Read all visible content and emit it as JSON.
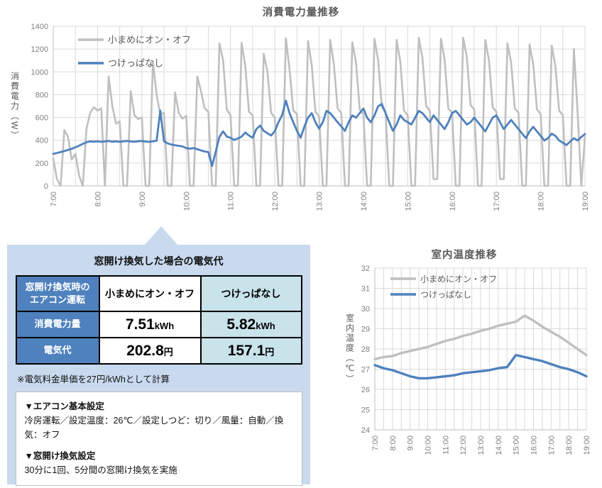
{
  "chart_data": [
    {
      "type": "line",
      "title": "消費電力量推移",
      "ylabel": "消費電力（W）",
      "ylim": [
        0,
        1400
      ],
      "ytick_step": 200,
      "x_labels": [
        "7:00",
        "8:00",
        "9:00",
        "10:00",
        "11:00",
        "12:00",
        "13:00",
        "14:00",
        "15:00",
        "16:00",
        "17:00",
        "18:00",
        "19:00"
      ],
      "total_minutes": 720,
      "grid_minutes": 30,
      "sample_interval_min": 5,
      "grid": "on",
      "legend_position": "inside-top-left",
      "series": [
        {
          "name": "小まめにオン・オフ",
          "color": "#BFBFBF",
          "values": [
            240,
            60,
            0,
            490,
            430,
            230,
            280,
            90,
            0,
            500,
            640,
            690,
            660,
            680,
            0,
            960,
            700,
            545,
            565,
            0,
            0,
            830,
            620,
            585,
            600,
            0,
            0,
            1090,
            800,
            625,
            640,
            0,
            0,
            820,
            640,
            590,
            615,
            0,
            0,
            960,
            830,
            680,
            650,
            0,
            0,
            1250,
            1100,
            670,
            620,
            0,
            0,
            1255,
            1050,
            650,
            620,
            0,
            0,
            1160,
            1000,
            640,
            600,
            0,
            0,
            1295,
            1020,
            660,
            630,
            0,
            0,
            1270,
            1060,
            650,
            610,
            0,
            0,
            1280,
            1070,
            680,
            640,
            0,
            0,
            1260,
            1080,
            670,
            630,
            0,
            0,
            1290,
            1100,
            690,
            650,
            0,
            0,
            1280,
            1090,
            660,
            620,
            0,
            0,
            1300,
            1120,
            700,
            660,
            60,
            60,
            1290,
            1110,
            680,
            640,
            0,
            0,
            1300,
            1130,
            710,
            670,
            0,
            0,
            1280,
            1100,
            690,
            650,
            60,
            60,
            1250,
            1080,
            680,
            640,
            0,
            0,
            1240,
            1060,
            670,
            630,
            0,
            0,
            1230,
            1050,
            660,
            620,
            0,
            0,
            1200,
            650,
            0,
            430
          ]
        },
        {
          "name": "つけっぱなし",
          "color": "#4E81BD",
          "values": [
            280,
            288,
            296,
            305,
            315,
            325,
            338,
            352,
            368,
            382,
            390,
            387,
            391,
            386,
            390,
            393,
            387,
            391,
            386,
            391,
            393,
            389,
            387,
            391,
            393,
            388,
            386,
            391,
            396,
            660,
            392,
            372,
            362,
            356,
            351,
            346,
            331,
            326,
            331,
            321,
            311,
            301,
            296,
            175,
            300,
            430,
            478,
            432,
            421,
            402,
            416,
            432,
            468,
            441,
            422,
            498,
            528,
            482,
            462,
            441,
            481,
            558,
            622,
            748,
            638,
            558,
            482,
            422,
            518,
            598,
            638,
            558,
            502,
            558,
            658,
            638,
            598,
            558,
            522,
            482,
            558,
            618,
            598,
            638,
            678,
            598,
            558,
            618,
            698,
            718,
            638,
            558,
            482,
            538,
            618,
            578,
            558,
            538,
            598,
            658,
            638,
            598,
            558,
            618,
            578,
            538,
            498,
            558,
            638,
            658,
            618,
            578,
            538,
            558,
            598,
            558,
            518,
            478,
            538,
            598,
            618,
            558,
            498,
            538,
            578,
            538,
            498,
            458,
            418,
            478,
            518,
            478,
            438,
            398,
            418,
            458,
            438,
            398,
            378,
            358,
            388,
            418,
            398,
            428,
            455
          ]
        }
      ]
    },
    {
      "type": "line",
      "title": "室内温度推移",
      "ylabel": "室内温度（℃）",
      "ylim": [
        24,
        32
      ],
      "ytick_step": 1,
      "x_labels": [
        "7:00",
        "8:00",
        "9:00",
        "10:00",
        "11:00",
        "12:00",
        "13:00",
        "14:00",
        "15:00",
        "16:00",
        "17:00",
        "18:00",
        "19:00"
      ],
      "total_minutes": 720,
      "grid_minutes": 30,
      "sample_interval_min": 30,
      "grid": "on",
      "legend_position": "inside-top-left",
      "series": [
        {
          "name": "小まめにオン・オフ",
          "color": "#BFBFBF",
          "values": [
            27.5,
            27.6,
            27.65,
            27.8,
            27.9,
            28.0,
            28.1,
            28.25,
            28.4,
            28.5,
            28.65,
            28.75,
            28.9,
            29.0,
            29.15,
            29.25,
            29.35,
            29.65,
            29.4,
            29.1,
            28.85,
            28.6,
            28.3,
            28.0,
            27.7
          ]
        },
        {
          "name": "つけっぱなし",
          "color": "#4E81BD",
          "values": [
            27.2,
            27.05,
            26.95,
            26.8,
            26.65,
            26.55,
            26.55,
            26.6,
            26.65,
            26.7,
            26.8,
            26.85,
            26.9,
            26.95,
            27.05,
            27.1,
            27.7,
            27.6,
            27.5,
            27.4,
            27.25,
            27.1,
            27.0,
            26.85,
            26.65
          ]
        }
      ]
    }
  ],
  "cost_panel": {
    "title": "窓開け換気した場合の電気代",
    "table": {
      "corner_line1": "窓開け換気時の",
      "corner_line2": "エアコン運転",
      "columns": [
        "小まめにオン・オフ",
        "つけっぱなし"
      ],
      "rows": [
        {
          "label": "消費電力量",
          "values": [
            {
              "amount": "7.51",
              "unit": "kWh"
            },
            {
              "amount": "5.82",
              "unit": "kWh"
            }
          ]
        },
        {
          "label": "電気代",
          "values": [
            {
              "amount": "202.8",
              "unit": "円"
            },
            {
              "amount": "157.1",
              "unit": "円"
            }
          ]
        }
      ]
    },
    "note": "※電気料金単価を27円/kWhとして計算",
    "sections": [
      {
        "heading": "▼エアコン基本設定",
        "body": "冷房運転／設定温度：26℃／設定しつど：切り／風量：自動／換気：オフ"
      },
      {
        "heading": "▼窓開け換気設定",
        "body": "30分に1回、5分間の窓開け換気を実施"
      }
    ]
  },
  "colors": {
    "series_onoff": "#BFBFBF",
    "series_on": "#4E81BD",
    "panel_bg": "#C9DAEF",
    "header_blue": "#4E81BD",
    "cell_cyan": "#C9E3EB",
    "grid": "#D9D9D9",
    "axis_text": "#7F7F7F",
    "title_text": "#595959"
  }
}
